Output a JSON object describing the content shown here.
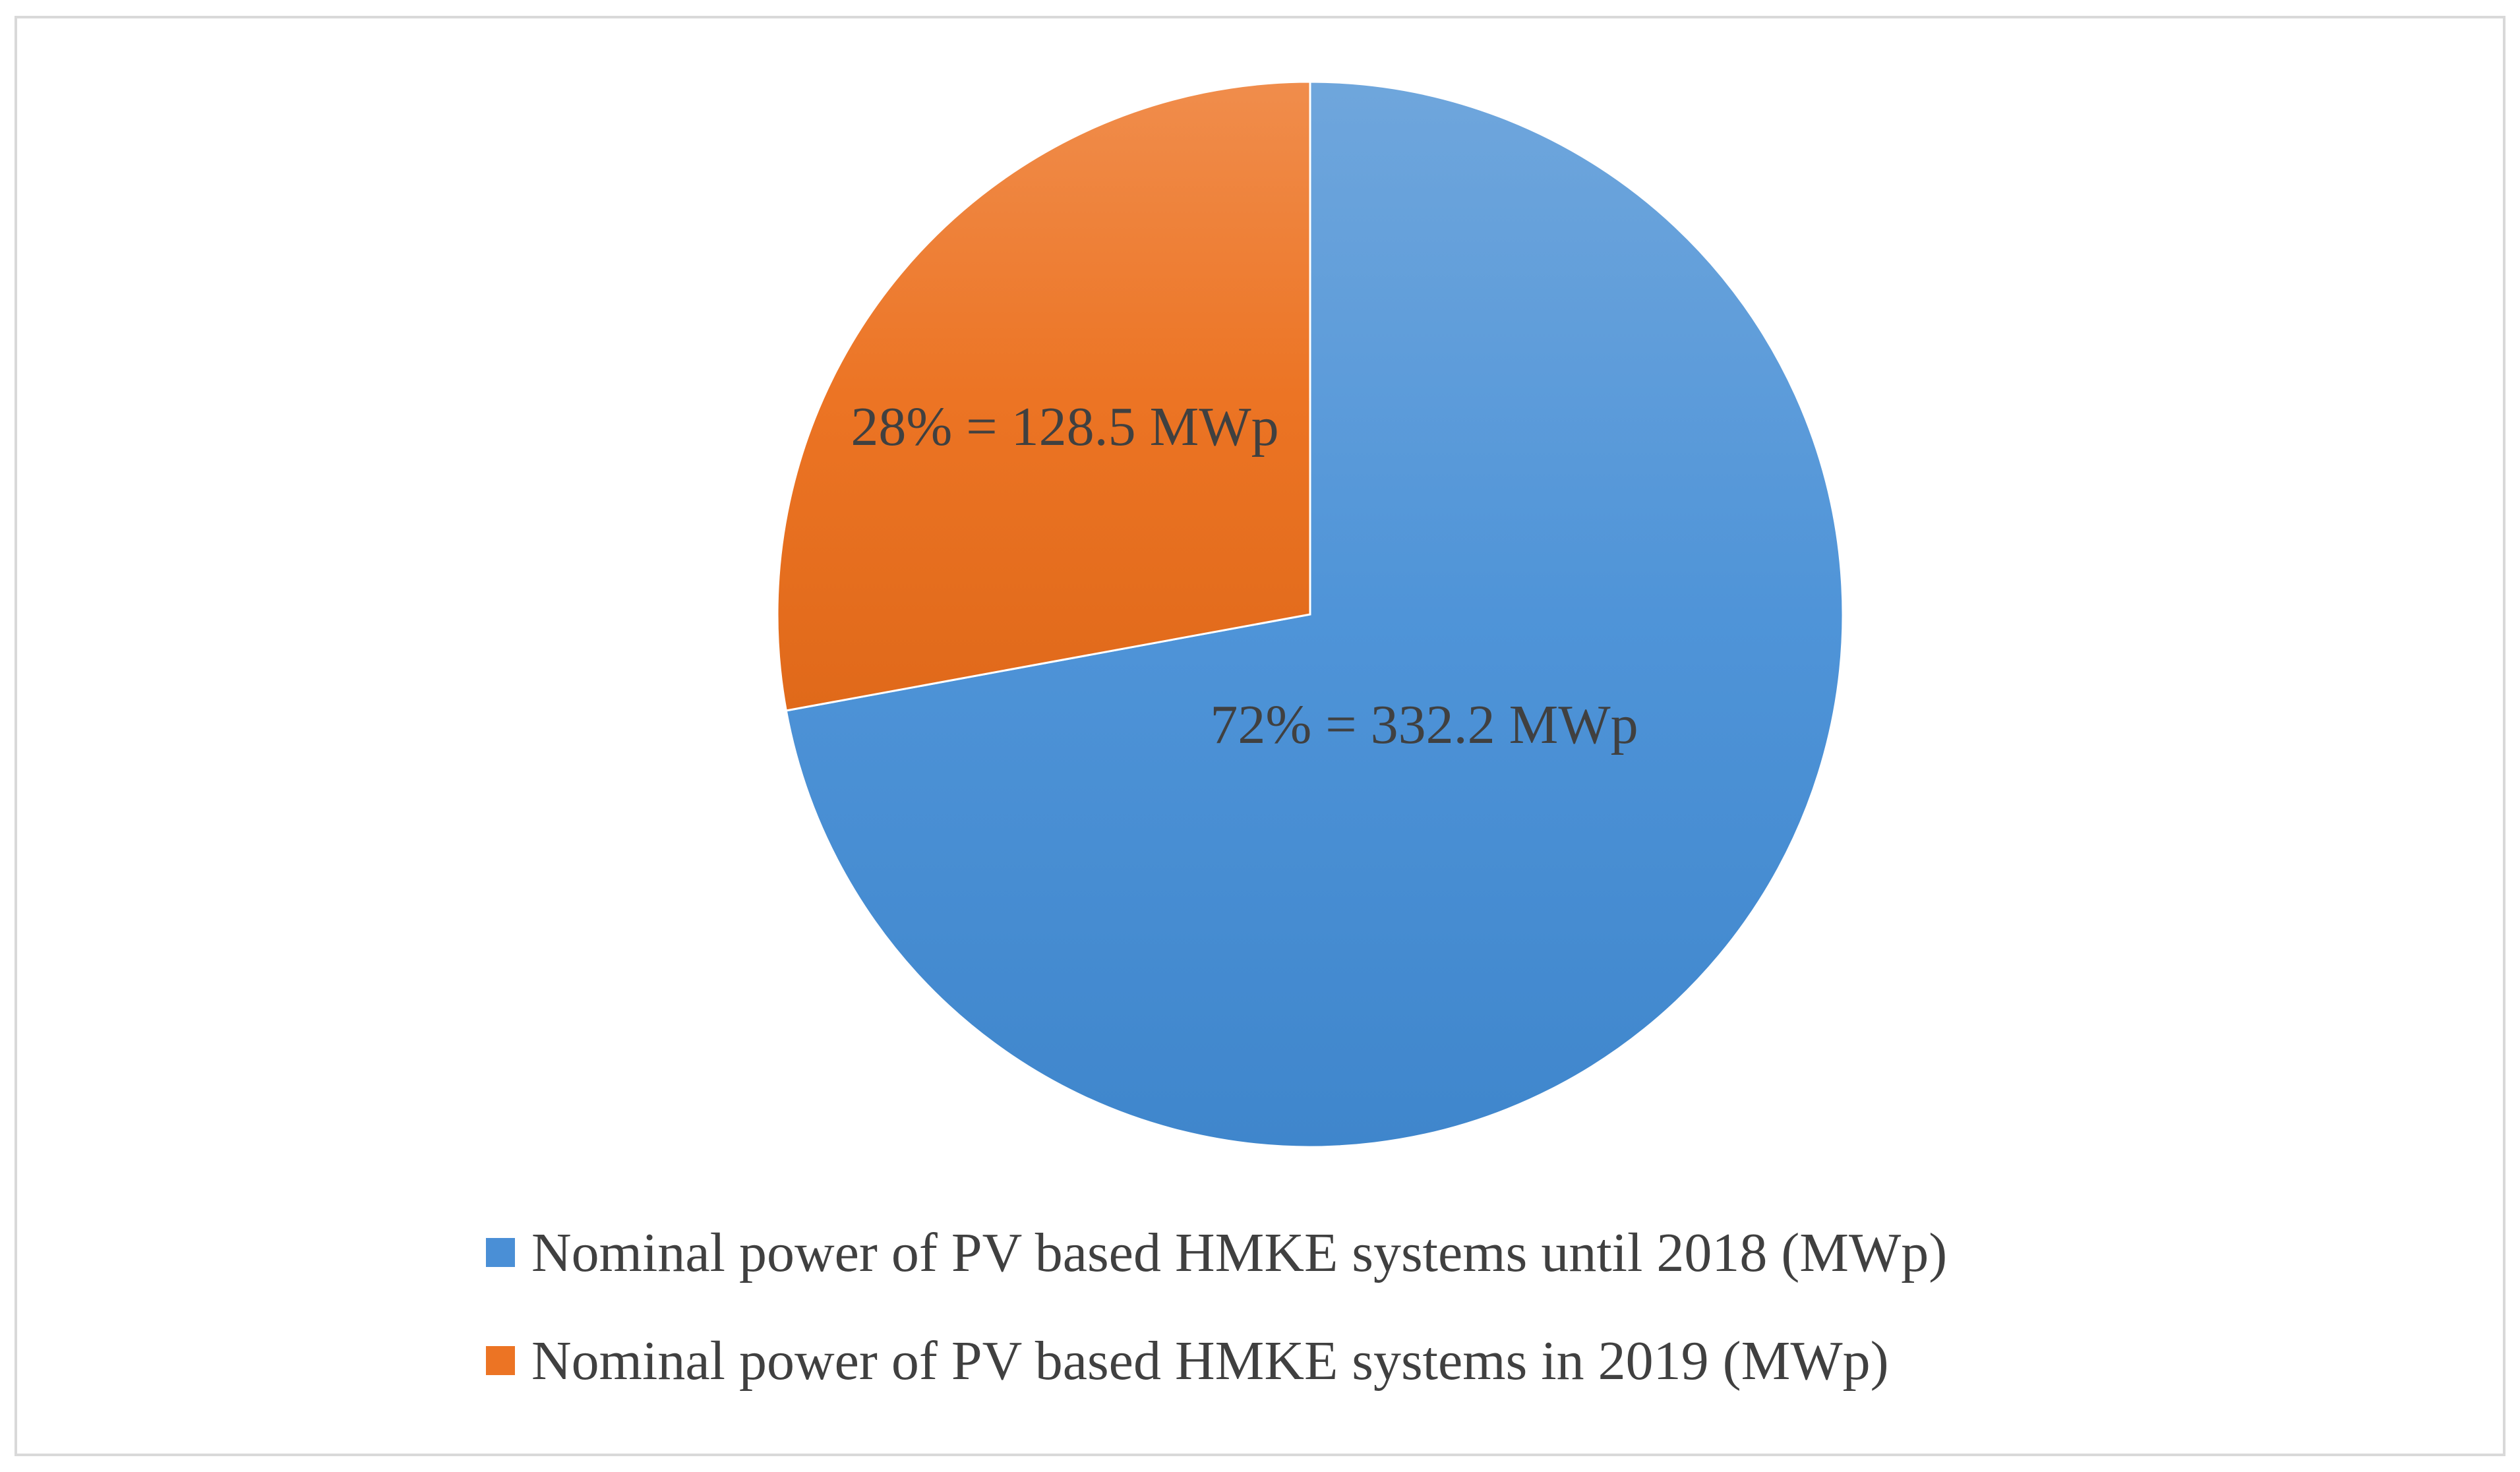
{
  "chart_data": {
    "type": "pie",
    "title": "",
    "slices": [
      {
        "name": "Nominal power of PV based HMKE systems until 2018 (MWp)",
        "value": 332.2,
        "percent": 72,
        "label": "72% = 332.2 MWp",
        "color": "#4a8fd6"
      },
      {
        "name": "Nominal power of PV based HMKE systems in 2019 (MWp)",
        "value": 128.5,
        "percent": 28,
        "label": "28% = 128.5 MWp",
        "color": "#ec7424"
      }
    ],
    "start_angle": "12 o'clock",
    "direction": "clockwise",
    "legend_position": "bottom"
  }
}
